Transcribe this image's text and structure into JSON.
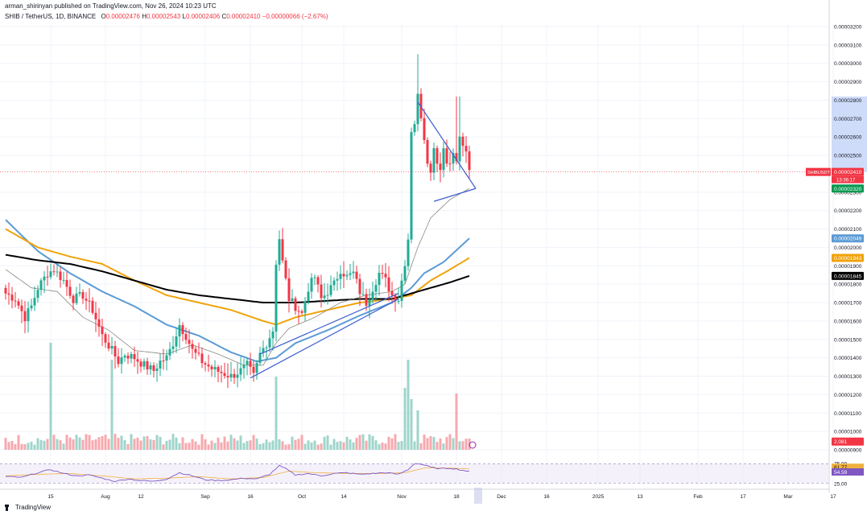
{
  "header": {
    "published": "arman_shirinyan published on TradingView.com, Nov 26, 2024 10:23 UTC"
  },
  "legend": {
    "symbol": "SHIB / TetherUS, 1D, BINANCE",
    "open_label": "O",
    "open": "0.00002476",
    "high_label": "H",
    "high": "0.00002543",
    "low_label": "L",
    "low": "0.00002406",
    "close_label": "C",
    "close": "0.00002410",
    "change": "−0.00000066 (−2.67%)"
  },
  "footer": {
    "brand": "TradingView"
  },
  "colors": {
    "up": "#22ab94",
    "down": "#f23645",
    "vol_up": "#9fd5cb",
    "vol_down": "#f7a8ae",
    "ema_blue": "#5b9bd5",
    "ema_orange": "#f0a30a",
    "ema_black": "#000000",
    "ema_thin": "#8a8a80",
    "trendline": "#3d5fd1",
    "rsi": "#7e57c2",
    "rsi_ma": "#f0b040"
  },
  "chart_data": {
    "type": "candlestick",
    "symbol": "SHIB / TetherUS",
    "interval": "1D",
    "exchange": "BINANCE",
    "price_axis": {
      "range": [
        9e-06,
        3.22e-05
      ],
      "ticks": [
        "0.00003200",
        "0.00003100",
        "0.00003000",
        "0.00002900",
        "0.00002800",
        "0.00002700",
        "0.00002600",
        "0.00002500",
        "0.00002300",
        "0.00002200",
        "0.00002100",
        "0.00002000",
        "0.00001900",
        "0.00001800",
        "0.00001700",
        "0.00001600",
        "0.00001500",
        "0.00001400",
        "0.00001300",
        "0.00001200",
        "0.00001100",
        "0.00001000",
        "0.00000900"
      ],
      "tick_values": [
        3.2,
        3.1,
        3.0,
        2.9,
        2.8,
        2.7,
        2.6,
        2.5,
        2.3,
        2.2,
        2.1,
        2.0,
        1.9,
        1.8,
        1.7,
        1.6,
        1.5,
        1.4,
        1.3,
        1.2,
        1.1,
        1.0,
        0.9
      ]
    },
    "time_axis": {
      "labels": [
        "15",
        "Aug",
        "12",
        "Sep",
        "16",
        "Oct",
        "14",
        "Nov",
        "18",
        "Dec",
        "16",
        "2025",
        "13",
        "Feb",
        "17",
        "Mar",
        "17"
      ],
      "label_days": [
        14,
        31,
        42,
        62,
        76,
        92,
        105,
        123,
        140,
        154,
        168,
        184,
        197,
        215,
        229,
        243,
        257
      ]
    },
    "badges": [
      {
        "label": "SHIBUSDT",
        "value": "0.00002410",
        "sub": "13:36:17",
        "color": "#f23645",
        "price": 2.41
      },
      {
        "label": "",
        "value": "0.00002320",
        "color": "#089950",
        "price": 2.32
      },
      {
        "label": "",
        "value": "0.00002049",
        "color": "#5b9bd5",
        "price": 2.049
      },
      {
        "label": "",
        "value": "0.00001943",
        "color": "#f0a30a",
        "price": 1.943
      },
      {
        "label": "",
        "value": "0.00001845",
        "color": "#000000",
        "price": 1.845
      },
      {
        "label": "",
        "value": "2.081",
        "color": "#f23645",
        "price": 0.945
      }
    ],
    "rsi": {
      "levels": [
        "75.00",
        "25.00"
      ],
      "values_shown": [
        "61.77",
        "54.59"
      ],
      "range": [
        20,
        90
      ]
    },
    "close_keyframes": [
      [
        0,
        1.75
      ],
      [
        3,
        1.72
      ],
      [
        6,
        1.62
      ],
      [
        8,
        1.68
      ],
      [
        10,
        1.78
      ],
      [
        13,
        1.86
      ],
      [
        15,
        1.88
      ],
      [
        18,
        1.82
      ],
      [
        21,
        1.72
      ],
      [
        24,
        1.74
      ],
      [
        27,
        1.66
      ],
      [
        30,
        1.52
      ],
      [
        33,
        1.44
      ],
      [
        35,
        1.38
      ],
      [
        37,
        1.42
      ],
      [
        40,
        1.4
      ],
      [
        43,
        1.36
      ],
      [
        46,
        1.33
      ],
      [
        48,
        1.38
      ],
      [
        50,
        1.4
      ],
      [
        52,
        1.48
      ],
      [
        54,
        1.58
      ],
      [
        56,
        1.52
      ],
      [
        58,
        1.44
      ],
      [
        61,
        1.38
      ],
      [
        64,
        1.34
      ],
      [
        67,
        1.32
      ],
      [
        70,
        1.3
      ],
      [
        73,
        1.33
      ],
      [
        75,
        1.36
      ],
      [
        77,
        1.3
      ],
      [
        79,
        1.42
      ],
      [
        81,
        1.48
      ],
      [
        83,
        1.55
      ],
      [
        84,
        1.92
      ],
      [
        85,
        2.05
      ],
      [
        86,
        1.92
      ],
      [
        87,
        1.82
      ],
      [
        88,
        1.72
      ],
      [
        90,
        1.68
      ],
      [
        92,
        1.64
      ],
      [
        94,
        1.78
      ],
      [
        96,
        1.84
      ],
      [
        98,
        1.72
      ],
      [
        100,
        1.76
      ],
      [
        102,
        1.8
      ],
      [
        104,
        1.88
      ],
      [
        106,
        1.84
      ],
      [
        108,
        1.86
      ],
      [
        110,
        1.76
      ],
      [
        112,
        1.7
      ],
      [
        114,
        1.78
      ],
      [
        116,
        1.86
      ],
      [
        118,
        1.82
      ],
      [
        120,
        1.74
      ],
      [
        122,
        1.72
      ],
      [
        124,
        1.92
      ],
      [
        125,
        2.05
      ],
      [
        126,
        2.64
      ],
      [
        127,
        2.68
      ],
      [
        128,
        2.82
      ],
      [
        129,
        2.72
      ],
      [
        130,
        2.6
      ],
      [
        131,
        2.48
      ],
      [
        132,
        2.4
      ],
      [
        133,
        2.56
      ],
      [
        134,
        2.46
      ],
      [
        135,
        2.44
      ],
      [
        136,
        2.54
      ],
      [
        137,
        2.46
      ],
      [
        138,
        2.48
      ],
      [
        139,
        2.5
      ],
      [
        140,
        2.47
      ],
      [
        141,
        2.59
      ],
      [
        142,
        2.56
      ],
      [
        143,
        2.5
      ],
      [
        144,
        2.41
      ]
    ],
    "wick_highlights": [
      [
        128,
        3.05
      ],
      [
        140,
        2.82
      ],
      [
        141,
        2.82
      ]
    ],
    "volume_spikes": [
      [
        14,
        0.95
      ],
      [
        33,
        0.8
      ],
      [
        84,
        0.65
      ],
      [
        124,
        0.55
      ],
      [
        125,
        0.8
      ],
      [
        126,
        0.45
      ],
      [
        128,
        0.35
      ],
      [
        140,
        0.5
      ]
    ],
    "moving_averages": [
      {
        "color_key": "ema_blue",
        "points": [
          [
            0,
            2.15
          ],
          [
            10,
            1.98
          ],
          [
            20,
            1.86
          ],
          [
            30,
            1.76
          ],
          [
            40,
            1.68
          ],
          [
            50,
            1.58
          ],
          [
            60,
            1.52
          ],
          [
            70,
            1.43
          ],
          [
            78,
            1.38
          ],
          [
            84,
            1.4
          ],
          [
            90,
            1.48
          ],
          [
            100,
            1.55
          ],
          [
            110,
            1.63
          ],
          [
            120,
            1.7
          ],
          [
            126,
            1.78
          ],
          [
            130,
            1.86
          ],
          [
            136,
            1.92
          ],
          [
            144,
            2.049
          ]
        ]
      },
      {
        "color_key": "ema_orange",
        "points": [
          [
            0,
            2.1
          ],
          [
            10,
            2.0
          ],
          [
            20,
            1.95
          ],
          [
            30,
            1.91
          ],
          [
            40,
            1.82
          ],
          [
            50,
            1.74
          ],
          [
            60,
            1.7
          ],
          [
            70,
            1.66
          ],
          [
            80,
            1.6
          ],
          [
            84,
            1.58
          ],
          [
            90,
            1.62
          ],
          [
            100,
            1.66
          ],
          [
            110,
            1.7
          ],
          [
            120,
            1.72
          ],
          [
            126,
            1.74
          ],
          [
            132,
            1.82
          ],
          [
            138,
            1.88
          ],
          [
            144,
            1.943
          ]
        ]
      },
      {
        "color_key": "ema_black",
        "points": [
          [
            0,
            1.96
          ],
          [
            10,
            1.93
          ],
          [
            20,
            1.91
          ],
          [
            30,
            1.87
          ],
          [
            40,
            1.82
          ],
          [
            50,
            1.77
          ],
          [
            60,
            1.74
          ],
          [
            70,
            1.72
          ],
          [
            80,
            1.7
          ],
          [
            90,
            1.7
          ],
          [
            100,
            1.71
          ],
          [
            110,
            1.72
          ],
          [
            120,
            1.72
          ],
          [
            126,
            1.75
          ],
          [
            132,
            1.78
          ],
          [
            138,
            1.81
          ],
          [
            144,
            1.845
          ]
        ]
      },
      {
        "color_key": "ema_thin",
        "points": [
          [
            0,
            1.88
          ],
          [
            8,
            1.78
          ],
          [
            16,
            1.76
          ],
          [
            24,
            1.62
          ],
          [
            32,
            1.55
          ],
          [
            40,
            1.44
          ],
          [
            50,
            1.42
          ],
          [
            58,
            1.47
          ],
          [
            66,
            1.42
          ],
          [
            74,
            1.36
          ],
          [
            80,
            1.36
          ],
          [
            84,
            1.48
          ],
          [
            88,
            1.56
          ],
          [
            96,
            1.62
          ],
          [
            104,
            1.7
          ],
          [
            112,
            1.74
          ],
          [
            120,
            1.76
          ],
          [
            124,
            1.8
          ],
          [
            128,
            2.0
          ],
          [
            132,
            2.16
          ],
          [
            138,
            2.26
          ],
          [
            144,
            2.32
          ]
        ]
      }
    ],
    "trendlines": [
      {
        "points": [
          [
            76,
            1.29
          ],
          [
            122,
            1.72
          ]
        ]
      },
      {
        "points": [
          [
            79,
            1.42
          ],
          [
            122,
            1.75
          ]
        ]
      },
      {
        "points": [
          [
            128,
            2.79
          ],
          [
            146,
            2.32
          ]
        ]
      },
      {
        "points": [
          [
            133,
            2.25
          ],
          [
            146,
            2.32
          ]
        ]
      }
    ],
    "rsi_keyframes": [
      [
        0,
        42
      ],
      [
        5,
        40
      ],
      [
        10,
        52
      ],
      [
        14,
        60
      ],
      [
        18,
        50
      ],
      [
        22,
        44
      ],
      [
        26,
        46
      ],
      [
        30,
        38
      ],
      [
        34,
        30
      ],
      [
        38,
        36
      ],
      [
        42,
        32
      ],
      [
        46,
        30
      ],
      [
        50,
        36
      ],
      [
        54,
        52
      ],
      [
        58,
        44
      ],
      [
        62,
        34
      ],
      [
        66,
        32
      ],
      [
        70,
        34
      ],
      [
        74,
        38
      ],
      [
        78,
        36
      ],
      [
        82,
        48
      ],
      [
        85,
        70
      ],
      [
        87,
        62
      ],
      [
        90,
        46
      ],
      [
        94,
        50
      ],
      [
        98,
        44
      ],
      [
        102,
        50
      ],
      [
        106,
        52
      ],
      [
        110,
        48
      ],
      [
        114,
        50
      ],
      [
        118,
        52
      ],
      [
        122,
        48
      ],
      [
        125,
        60
      ],
      [
        127,
        76
      ],
      [
        129,
        74
      ],
      [
        132,
        66
      ],
      [
        135,
        62
      ],
      [
        138,
        64
      ],
      [
        141,
        60
      ],
      [
        144,
        55
      ]
    ],
    "rsi_ma_keyframes": [
      [
        0,
        44
      ],
      [
        10,
        48
      ],
      [
        20,
        50
      ],
      [
        30,
        44
      ],
      [
        40,
        36
      ],
      [
        50,
        38
      ],
      [
        60,
        42
      ],
      [
        70,
        36
      ],
      [
        80,
        40
      ],
      [
        88,
        56
      ],
      [
        96,
        52
      ],
      [
        106,
        50
      ],
      [
        116,
        50
      ],
      [
        124,
        52
      ],
      [
        130,
        64
      ],
      [
        137,
        64
      ],
      [
        144,
        62
      ]
    ]
  }
}
